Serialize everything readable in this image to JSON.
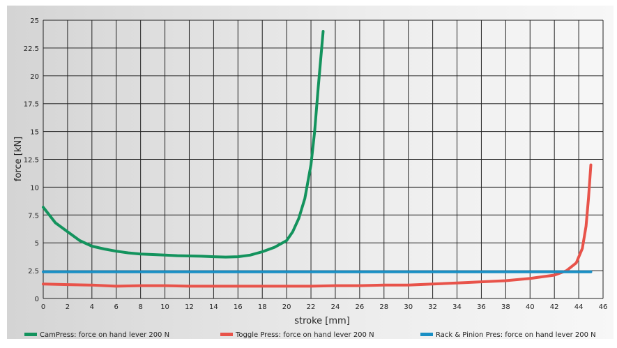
{
  "chart_data": {
    "type": "line",
    "title": "",
    "xlabel": "stroke [mm]",
    "ylabel": "force [kN]",
    "xlim": [
      0,
      46
    ],
    "ylim": [
      0,
      25
    ],
    "x_ticks": [
      0,
      2,
      4,
      6,
      8,
      10,
      12,
      14,
      16,
      18,
      20,
      22,
      24,
      26,
      28,
      30,
      32,
      34,
      36,
      38,
      40,
      42,
      44,
      46
    ],
    "y_ticks": [
      0,
      2.5,
      5,
      7.5,
      10,
      12.5,
      15,
      17.5,
      20,
      22.5,
      25
    ],
    "x_tick_labels": [
      "0",
      "2",
      "4",
      "6",
      "8",
      "10",
      "12",
      "14",
      "16",
      "18",
      "20",
      "22",
      "24",
      "26",
      "28",
      "30",
      "32",
      "34",
      "36",
      "38",
      "40",
      "42",
      "44",
      "46"
    ],
    "y_tick_labels": [
      "0",
      "2.5",
      "5",
      "7.5",
      "10",
      "12.5",
      "15",
      "17.5",
      "20",
      "22.5",
      "25"
    ],
    "grid": true,
    "legend_position": "bottom",
    "series": [
      {
        "name": "CamPress: force on hand lever 200 N",
        "color": "#13935d",
        "points": [
          [
            0,
            8.2
          ],
          [
            1,
            6.8
          ],
          [
            2,
            6.0
          ],
          [
            3,
            5.2
          ],
          [
            4,
            4.7
          ],
          [
            5,
            4.45
          ],
          [
            6,
            4.25
          ],
          [
            7,
            4.1
          ],
          [
            8,
            4.0
          ],
          [
            9,
            3.95
          ],
          [
            10,
            3.9
          ],
          [
            11,
            3.85
          ],
          [
            12,
            3.82
          ],
          [
            13,
            3.8
          ],
          [
            14,
            3.75
          ],
          [
            15,
            3.72
          ],
          [
            16,
            3.75
          ],
          [
            17,
            3.9
          ],
          [
            18,
            4.2
          ],
          [
            19,
            4.6
          ],
          [
            20,
            5.2
          ],
          [
            20.5,
            6.0
          ],
          [
            21,
            7.2
          ],
          [
            21.5,
            9.0
          ],
          [
            22,
            12.0
          ],
          [
            22.3,
            15.0
          ],
          [
            22.6,
            19.0
          ],
          [
            23,
            24.0
          ]
        ]
      },
      {
        "name": "Toggle Press: force on hand lever 200 N",
        "color": "#e8534a",
        "points": [
          [
            0,
            1.3
          ],
          [
            2,
            1.25
          ],
          [
            4,
            1.2
          ],
          [
            6,
            1.1
          ],
          [
            8,
            1.15
          ],
          [
            10,
            1.15
          ],
          [
            12,
            1.1
          ],
          [
            14,
            1.1
          ],
          [
            16,
            1.1
          ],
          [
            18,
            1.1
          ],
          [
            20,
            1.1
          ],
          [
            22,
            1.1
          ],
          [
            24,
            1.15
          ],
          [
            26,
            1.15
          ],
          [
            28,
            1.2
          ],
          [
            30,
            1.2
          ],
          [
            32,
            1.3
          ],
          [
            34,
            1.4
          ],
          [
            36,
            1.5
          ],
          [
            38,
            1.6
          ],
          [
            40,
            1.8
          ],
          [
            41,
            1.95
          ],
          [
            42,
            2.1
          ],
          [
            43,
            2.5
          ],
          [
            43.8,
            3.2
          ],
          [
            44.3,
            4.5
          ],
          [
            44.6,
            6.5
          ],
          [
            44.8,
            9.0
          ],
          [
            45,
            12.0
          ]
        ]
      },
      {
        "name": "Rack & Pinion Pres: force on hand lever 200 N",
        "color": "#1a8fc4",
        "points": [
          [
            0,
            2.4
          ],
          [
            45,
            2.4
          ]
        ]
      }
    ]
  }
}
